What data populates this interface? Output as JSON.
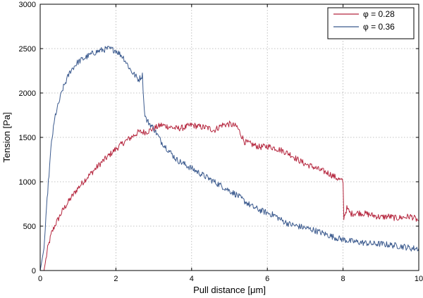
{
  "chart_data": {
    "type": "line",
    "xlabel": "Pull distance [μm]",
    "ylabel": "Tension [Pa]",
    "xlim": [
      0,
      10
    ],
    "ylim": [
      0,
      3000
    ],
    "xticks": [
      "0",
      "2",
      "4",
      "6",
      "8",
      "10"
    ],
    "yticks": [
      "0",
      "500",
      "1000",
      "1500",
      "2000",
      "2500",
      "3000"
    ],
    "grid": true,
    "legend_position": "top-right",
    "series": [
      {
        "name": "φ = 0.28",
        "color": "#b5263e",
        "x": [
          0.0,
          0.1,
          0.2,
          0.3,
          0.4,
          0.5,
          0.6,
          0.8,
          1.0,
          1.2,
          1.4,
          1.6,
          1.8,
          2.0,
          2.2,
          2.4,
          2.6,
          2.8,
          3.0,
          3.2,
          3.4,
          3.6,
          3.8,
          4.0,
          4.2,
          4.4,
          4.6,
          4.8,
          5.0,
          5.2,
          5.4,
          5.6,
          5.8,
          6.0,
          6.2,
          6.4,
          6.6,
          6.8,
          7.0,
          7.2,
          7.4,
          7.6,
          7.8,
          8.0,
          8.02,
          8.1,
          8.2,
          8.4,
          8.6,
          8.8,
          9.0,
          9.2,
          9.4,
          9.6,
          9.8,
          10.0
        ],
        "y": [
          0,
          0,
          250,
          420,
          520,
          600,
          680,
          810,
          930,
          1030,
          1120,
          1210,
          1290,
          1370,
          1440,
          1500,
          1560,
          1560,
          1600,
          1640,
          1620,
          1600,
          1610,
          1640,
          1620,
          1610,
          1580,
          1640,
          1650,
          1620,
          1450,
          1420,
          1390,
          1400,
          1380,
          1350,
          1310,
          1250,
          1200,
          1170,
          1130,
          1100,
          1050,
          1000,
          600,
          700,
          640,
          650,
          640,
          620,
          600,
          610,
          590,
          600,
          610,
          560
        ]
      },
      {
        "name": "φ = 0.36",
        "color": "#3b5a8e",
        "x": [
          0.0,
          0.1,
          0.2,
          0.3,
          0.4,
          0.5,
          0.6,
          0.8,
          1.0,
          1.2,
          1.4,
          1.6,
          1.8,
          2.0,
          2.2,
          2.4,
          2.6,
          2.7,
          2.75,
          2.8,
          3.0,
          3.2,
          3.4,
          3.6,
          3.8,
          4.0,
          4.2,
          4.4,
          4.6,
          4.8,
          5.0,
          5.2,
          5.4,
          5.6,
          5.8,
          6.0,
          6.2,
          6.4,
          6.6,
          6.8,
          7.0,
          7.2,
          7.4,
          7.6,
          7.8,
          8.0,
          8.2,
          8.4,
          8.6,
          8.8,
          9.0,
          9.2,
          9.4,
          9.6,
          9.8,
          10.0
        ],
        "y": [
          0,
          250,
          900,
          1450,
          1750,
          1900,
          2050,
          2250,
          2350,
          2400,
          2450,
          2480,
          2500,
          2480,
          2400,
          2250,
          2150,
          2200,
          1800,
          1700,
          1600,
          1450,
          1350,
          1250,
          1200,
          1150,
          1100,
          1050,
          1000,
          950,
          900,
          850,
          780,
          720,
          680,
          650,
          620,
          560,
          520,
          500,
          480,
          460,
          430,
          400,
          370,
          350,
          330,
          320,
          310,
          300,
          300,
          290,
          280,
          270,
          250,
          250
        ]
      }
    ]
  }
}
